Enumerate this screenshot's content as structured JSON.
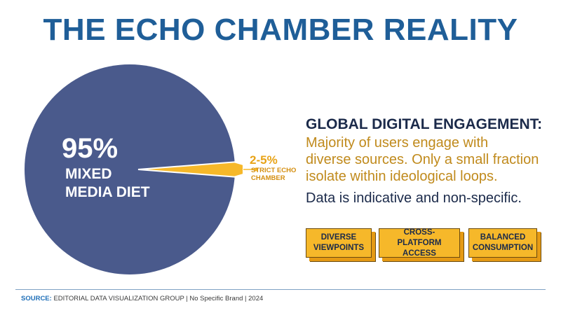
{
  "title": "THE ECHO CHAMBER REALITY",
  "pie": {
    "main_value": "95%",
    "main_label_line1": "MIXED",
    "main_label_line2": "MEDIA DIET",
    "slice_value": "2-5%",
    "slice_label_line1": "STRICT ECHO",
    "slice_label_line2": "CHAMBER"
  },
  "chart_data": {
    "type": "pie",
    "slices": [
      {
        "label": "MIXED MEDIA DIET",
        "value_text": "95%",
        "value": 95,
        "color": "#4a5a8c"
      },
      {
        "label": "STRICT ECHO CHAMBER",
        "value_text": "2-5%",
        "value": 5,
        "color": "#f6b82a"
      }
    ]
  },
  "side": {
    "heading": "GLOBAL DIGITAL ENGAGEMENT:",
    "body_line1": "Majority of users engage with",
    "body_line2": "diverse sources. Only a small fraction",
    "body_line3": "isolate within ideological loops.",
    "note": "Data is indicative and non-specific."
  },
  "badges": [
    {
      "line1": "DIVERSE",
      "line2": "VIEWPOINTS"
    },
    {
      "line1": "CROSS-PLATFORM",
      "line2": "ACCESS"
    },
    {
      "line1": "BALANCED",
      "line2": "CONSUMPTION"
    }
  ],
  "footer": {
    "source_label": "SOURCE:",
    "source_text": " EDITORIAL DATA VISUALIZATION GROUP  | No Specific Brand | 2024"
  },
  "colors": {
    "title": "#1f5e98",
    "pie_main": "#4a5a8c",
    "pie_slice": "#f6b82a",
    "accent_text": "#c08a1c",
    "dark_text": "#1b2a4a"
  }
}
